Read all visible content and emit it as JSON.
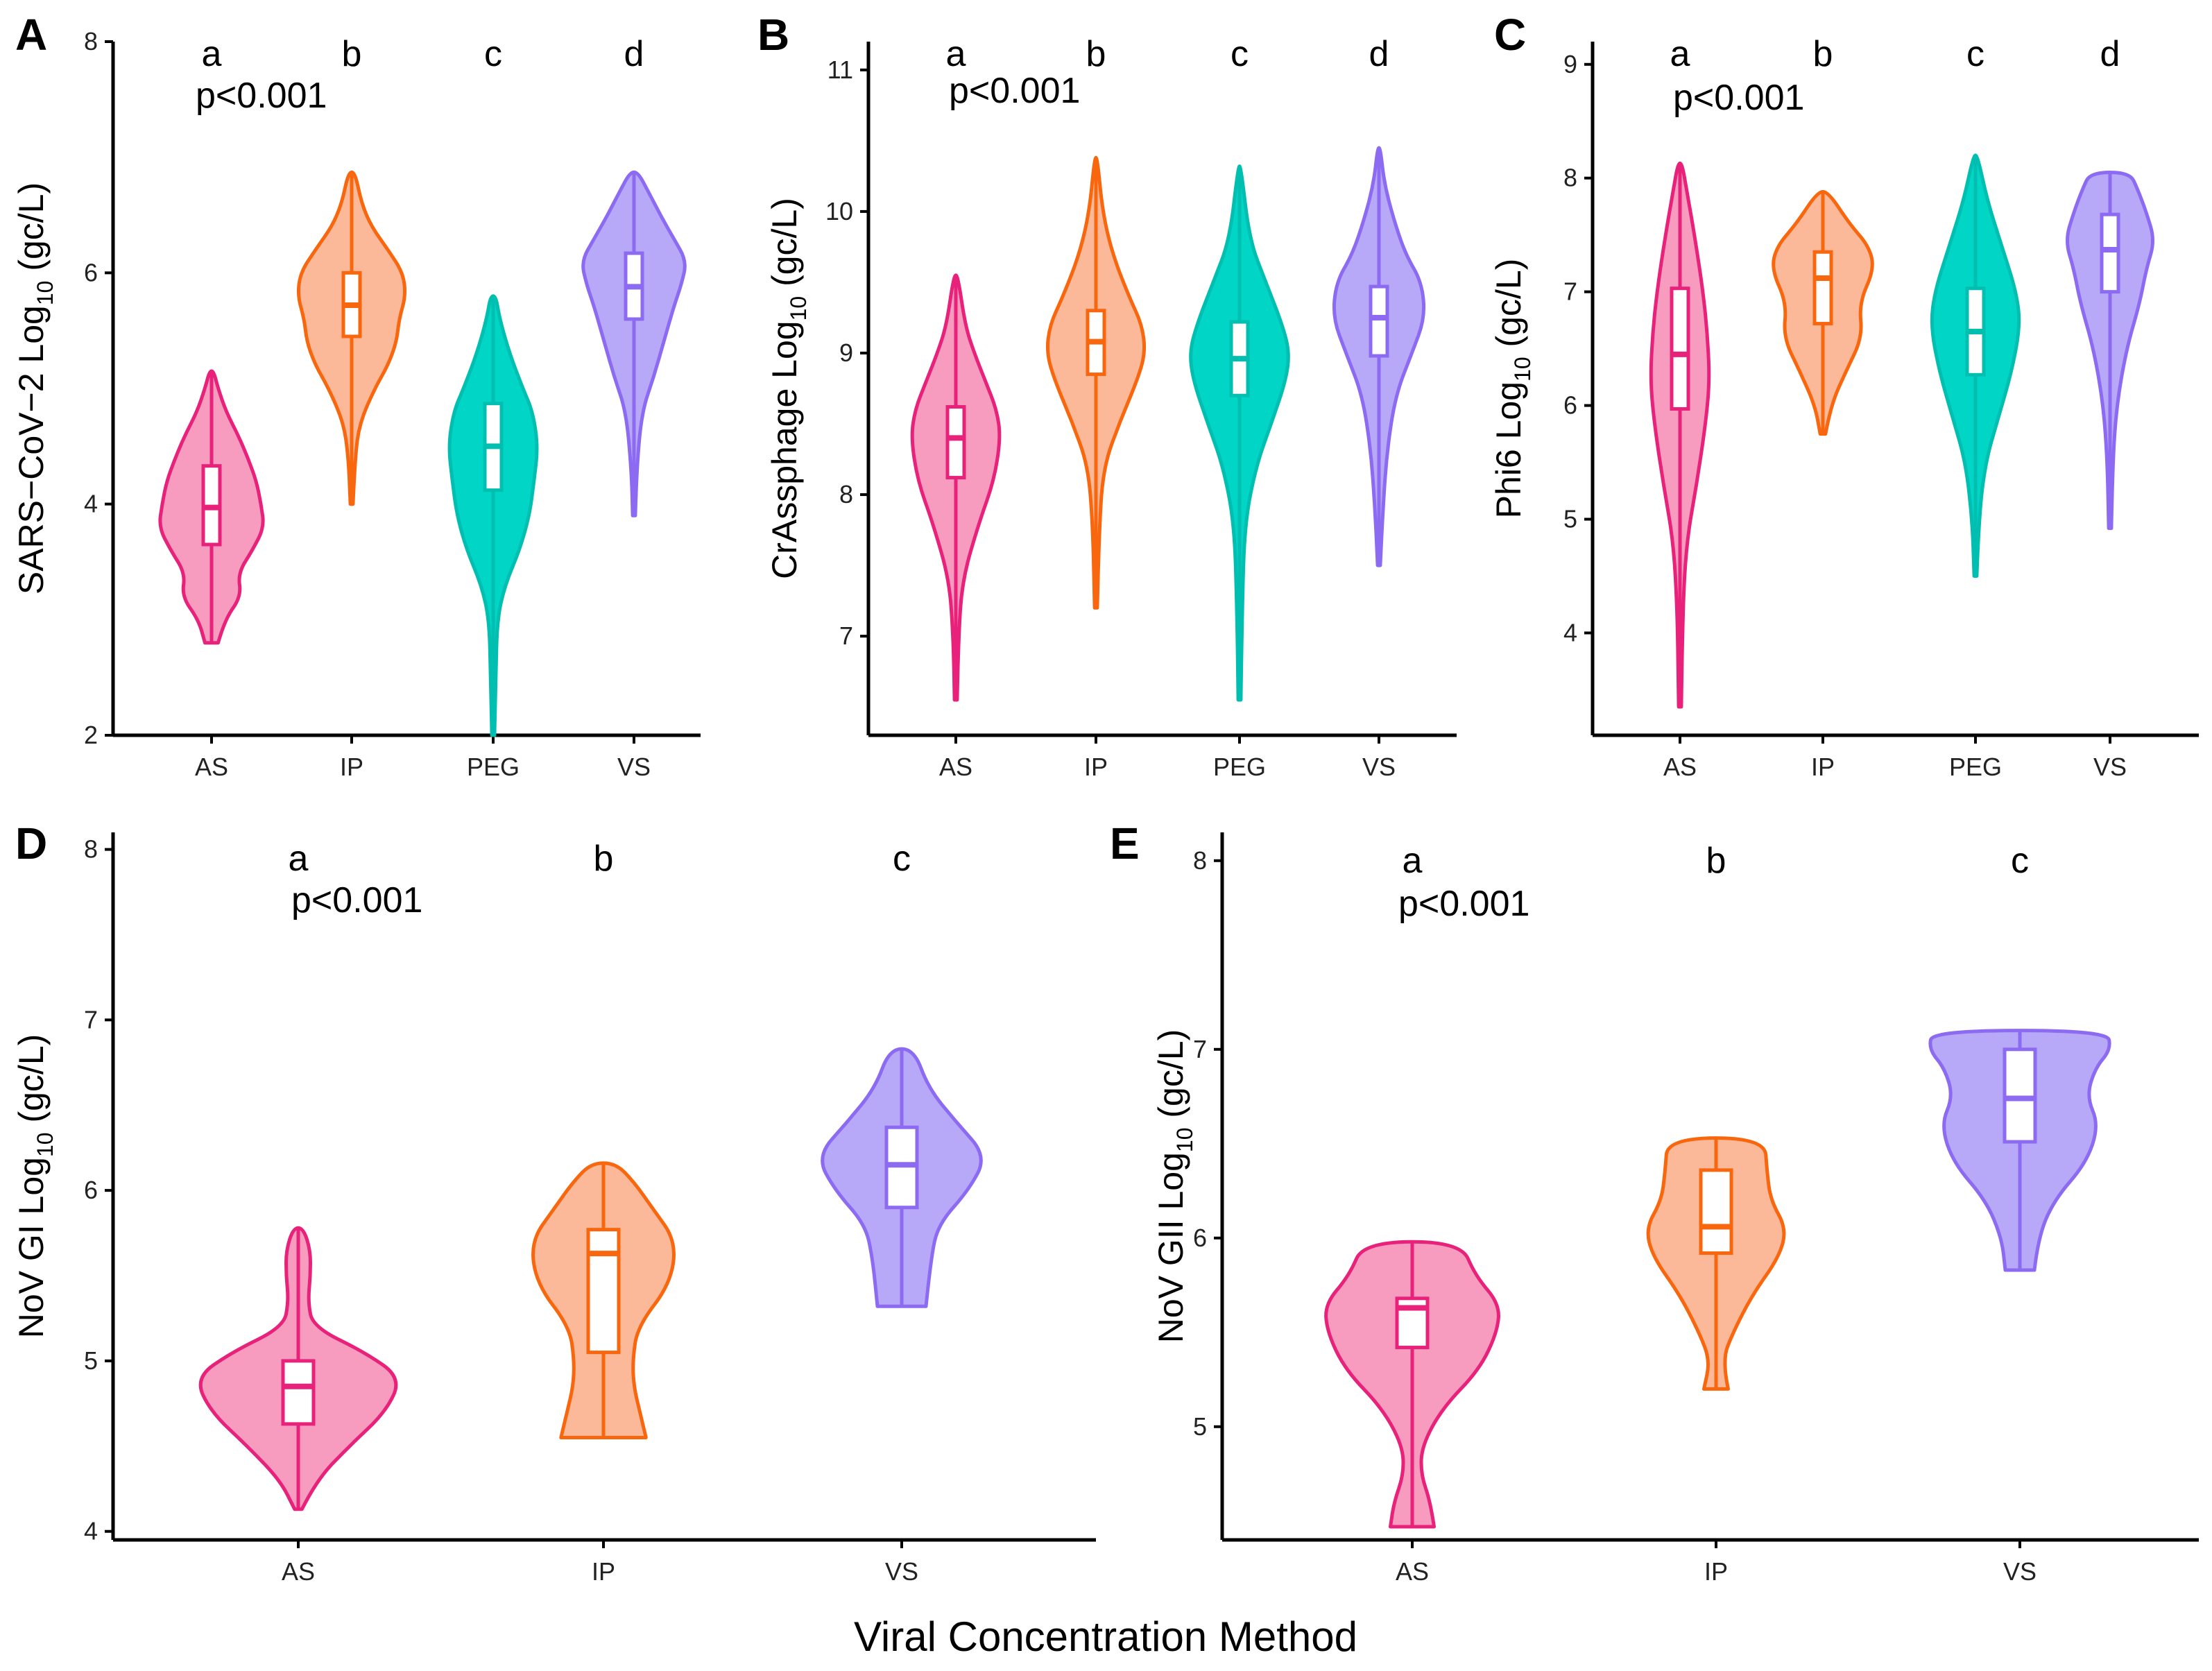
{
  "figure": {
    "x_title": "Viral Concentration Method"
  },
  "colors": {
    "AS": {
      "line": "#E8217A",
      "fill": "#F79CBF"
    },
    "IP": {
      "line": "#F8660D",
      "fill": "#FBB99A"
    },
    "PEG": {
      "line": "#00BFB0",
      "fill": "#00D5C6"
    },
    "VS": {
      "line": "#8C6BF2",
      "fill": "#B7A8F8"
    }
  },
  "chart_data": [
    {
      "id": "A",
      "type": "violin",
      "tag": "A",
      "ylabel_main": "SARS−CoV−2 Log",
      "ylabel_sub": "10",
      "ylabel_unit": " (gc/L)",
      "ylim": [
        2,
        8
      ],
      "yticks": [
        2,
        4,
        6,
        8
      ],
      "pvalue": "p<0.001",
      "categories": [
        "AS",
        "IP",
        "PEG",
        "VS"
      ],
      "letters": [
        "a",
        "b",
        "c",
        "d"
      ],
      "violins": [
        {
          "cat": "AS",
          "min": 2.8,
          "max": 5.15,
          "q1": 3.65,
          "median": 3.97,
          "q3": 4.33,
          "profile": [
            [
              2.8,
              0.1
            ],
            [
              3.0,
              0.2
            ],
            [
              3.2,
              0.45
            ],
            [
              3.4,
              0.4
            ],
            [
              3.6,
              0.62
            ],
            [
              3.8,
              0.8
            ],
            [
              4.0,
              0.75
            ],
            [
              4.2,
              0.68
            ],
            [
              4.4,
              0.55
            ],
            [
              4.6,
              0.4
            ],
            [
              4.8,
              0.22
            ],
            [
              5.0,
              0.1
            ],
            [
              5.15,
              0.03
            ]
          ]
        },
        {
          "cat": "IP",
          "min": 4.0,
          "max": 6.87,
          "q1": 5.45,
          "median": 5.72,
          "q3": 6.0,
          "profile": [
            [
              4.0,
              0.02
            ],
            [
              4.4,
              0.05
            ],
            [
              4.7,
              0.12
            ],
            [
              5.0,
              0.35
            ],
            [
              5.2,
              0.55
            ],
            [
              5.4,
              0.68
            ],
            [
              5.6,
              0.72
            ],
            [
              5.8,
              0.82
            ],
            [
              6.0,
              0.78
            ],
            [
              6.2,
              0.55
            ],
            [
              6.4,
              0.3
            ],
            [
              6.6,
              0.15
            ],
            [
              6.87,
              0.05
            ]
          ]
        },
        {
          "cat": "PEG",
          "min": 2.0,
          "max": 5.8,
          "q1": 4.12,
          "median": 4.5,
          "q3": 4.87,
          "profile": [
            [
              2.0,
              0.02
            ],
            [
              2.5,
              0.04
            ],
            [
              3.0,
              0.06
            ],
            [
              3.3,
              0.18
            ],
            [
              3.6,
              0.4
            ],
            [
              3.9,
              0.55
            ],
            [
              4.2,
              0.62
            ],
            [
              4.5,
              0.68
            ],
            [
              4.8,
              0.6
            ],
            [
              5.0,
              0.45
            ],
            [
              5.3,
              0.25
            ],
            [
              5.6,
              0.1
            ],
            [
              5.8,
              0.04
            ]
          ]
        },
        {
          "cat": "VS",
          "min": 3.9,
          "max": 6.87,
          "q1": 5.6,
          "median": 5.88,
          "q3": 6.17,
          "profile": [
            [
              3.9,
              0.02
            ],
            [
              4.3,
              0.04
            ],
            [
              4.8,
              0.12
            ],
            [
              5.1,
              0.3
            ],
            [
              5.4,
              0.45
            ],
            [
              5.7,
              0.6
            ],
            [
              5.9,
              0.72
            ],
            [
              6.1,
              0.8
            ],
            [
              6.3,
              0.6
            ],
            [
              6.5,
              0.4
            ],
            [
              6.7,
              0.22
            ],
            [
              6.87,
              0.06
            ]
          ]
        }
      ]
    },
    {
      "id": "B",
      "type": "violin",
      "tag": "B",
      "ylabel_main": "CrAssphage Log",
      "ylabel_sub": "10",
      "ylabel_unit": " (gc/L)",
      "ylim": [
        6.3,
        11.2
      ],
      "yticks": [
        7,
        8,
        9,
        10,
        11
      ],
      "pvalue": "p<0.001",
      "categories": [
        "AS",
        "IP",
        "PEG",
        "VS"
      ],
      "letters": [
        "a",
        "b",
        "c",
        "d"
      ],
      "violins": [
        {
          "cat": "AS",
          "min": 6.55,
          "max": 9.55,
          "q1": 8.12,
          "median": 8.4,
          "q3": 8.62,
          "profile": [
            [
              6.55,
              0.02
            ],
            [
              7.0,
              0.04
            ],
            [
              7.4,
              0.1
            ],
            [
              7.8,
              0.35
            ],
            [
              8.1,
              0.58
            ],
            [
              8.4,
              0.68
            ],
            [
              8.6,
              0.62
            ],
            [
              8.8,
              0.45
            ],
            [
              9.0,
              0.28
            ],
            [
              9.2,
              0.14
            ],
            [
              9.55,
              0.03
            ]
          ]
        },
        {
          "cat": "IP",
          "min": 7.2,
          "max": 10.38,
          "q1": 8.85,
          "median": 9.08,
          "q3": 9.3,
          "profile": [
            [
              7.2,
              0.02
            ],
            [
              7.8,
              0.05
            ],
            [
              8.2,
              0.12
            ],
            [
              8.5,
              0.35
            ],
            [
              8.8,
              0.62
            ],
            [
              9.0,
              0.75
            ],
            [
              9.2,
              0.7
            ],
            [
              9.4,
              0.5
            ],
            [
              9.7,
              0.25
            ],
            [
              10.0,
              0.1
            ],
            [
              10.38,
              0.02
            ]
          ]
        },
        {
          "cat": "PEG",
          "min": 6.55,
          "max": 10.32,
          "q1": 8.7,
          "median": 8.96,
          "q3": 9.22,
          "profile": [
            [
              6.55,
              0.02
            ],
            [
              7.2,
              0.04
            ],
            [
              7.8,
              0.08
            ],
            [
              8.2,
              0.25
            ],
            [
              8.5,
              0.48
            ],
            [
              8.8,
              0.7
            ],
            [
              9.0,
              0.76
            ],
            [
              9.2,
              0.65
            ],
            [
              9.5,
              0.4
            ],
            [
              9.8,
              0.15
            ],
            [
              10.32,
              0.02
            ]
          ]
        },
        {
          "cat": "VS",
          "min": 7.5,
          "max": 10.45,
          "q1": 8.98,
          "median": 9.25,
          "q3": 9.47,
          "profile": [
            [
              7.5,
              0.02
            ],
            [
              7.9,
              0.06
            ],
            [
              8.3,
              0.12
            ],
            [
              8.7,
              0.25
            ],
            [
              9.0,
              0.5
            ],
            [
              9.25,
              0.7
            ],
            [
              9.5,
              0.65
            ],
            [
              9.7,
              0.4
            ],
            [
              9.95,
              0.22
            ],
            [
              10.2,
              0.08
            ],
            [
              10.45,
              0.02
            ]
          ]
        }
      ]
    },
    {
      "id": "C",
      "type": "violin",
      "tag": "C",
      "ylabel_main": "Phi6 Log",
      "ylabel_sub": "10",
      "ylabel_unit": " (gc/L)",
      "ylim": [
        3.1,
        9.2
      ],
      "yticks": [
        4,
        5,
        6,
        7,
        8,
        9
      ],
      "pvalue": "p<0.001",
      "categories": [
        "AS",
        "IP",
        "PEG",
        "VS"
      ],
      "letters": [
        "a",
        "b",
        "c",
        "d"
      ],
      "violins": [
        {
          "cat": "AS",
          "min": 3.35,
          "max": 8.13,
          "q1": 5.97,
          "median": 6.45,
          "q3": 7.03,
          "profile": [
            [
              3.35,
              0.02
            ],
            [
              4.2,
              0.04
            ],
            [
              4.8,
              0.1
            ],
            [
              5.3,
              0.25
            ],
            [
              5.8,
              0.38
            ],
            [
              6.2,
              0.45
            ],
            [
              6.6,
              0.42
            ],
            [
              7.0,
              0.35
            ],
            [
              7.5,
              0.22
            ],
            [
              7.9,
              0.1
            ],
            [
              8.13,
              0.03
            ]
          ]
        },
        {
          "cat": "IP",
          "min": 5.75,
          "max": 7.88,
          "q1": 6.72,
          "median": 7.12,
          "q3": 7.35,
          "profile": [
            [
              5.75,
              0.04
            ],
            [
              6.0,
              0.12
            ],
            [
              6.3,
              0.35
            ],
            [
              6.6,
              0.6
            ],
            [
              6.9,
              0.55
            ],
            [
              7.2,
              0.78
            ],
            [
              7.4,
              0.7
            ],
            [
              7.6,
              0.4
            ],
            [
              7.88,
              0.08
            ]
          ]
        },
        {
          "cat": "PEG",
          "min": 4.5,
          "max": 8.2,
          "q1": 6.27,
          "median": 6.65,
          "q3": 7.03,
          "profile": [
            [
              4.5,
              0.02
            ],
            [
              5.0,
              0.05
            ],
            [
              5.5,
              0.15
            ],
            [
              5.9,
              0.35
            ],
            [
              6.3,
              0.55
            ],
            [
              6.7,
              0.68
            ],
            [
              7.0,
              0.62
            ],
            [
              7.4,
              0.4
            ],
            [
              7.8,
              0.18
            ],
            [
              8.2,
              0.03
            ]
          ]
        },
        {
          "cat": "VS",
          "min": 4.92,
          "max": 8.05,
          "q1": 7.0,
          "median": 7.37,
          "q3": 7.68,
          "profile": [
            [
              4.92,
              0.02
            ],
            [
              5.5,
              0.04
            ],
            [
              6.0,
              0.1
            ],
            [
              6.5,
              0.25
            ],
            [
              6.9,
              0.45
            ],
            [
              7.2,
              0.55
            ],
            [
              7.45,
              0.68
            ],
            [
              7.7,
              0.55
            ],
            [
              7.9,
              0.42
            ],
            [
              8.05,
              0.3
            ]
          ]
        }
      ]
    },
    {
      "id": "D",
      "type": "violin",
      "tag": "D",
      "ylabel_main": "NoV GI Log",
      "ylabel_sub": "10",
      "ylabel_unit": " (gc/L)",
      "ylim": [
        3.95,
        8.1
      ],
      "yticks": [
        4,
        5,
        6,
        7,
        8
      ],
      "pvalue": "p<0.001",
      "categories": [
        "AS",
        "IP",
        "VS"
      ],
      "letters": [
        "a",
        "b",
        "c"
      ],
      "violins": [
        {
          "cat": "AS",
          "min": 4.13,
          "max": 5.78,
          "q1": 4.63,
          "median": 4.85,
          "q3": 5.0,
          "profile": [
            [
              4.13,
              0.03
            ],
            [
              4.3,
              0.15
            ],
            [
              4.5,
              0.42
            ],
            [
              4.7,
              0.72
            ],
            [
              4.9,
              0.85
            ],
            [
              5.05,
              0.55
            ],
            [
              5.2,
              0.12
            ],
            [
              5.35,
              0.08
            ],
            [
              5.5,
              0.1
            ],
            [
              5.65,
              0.1
            ],
            [
              5.78,
              0.04
            ]
          ]
        },
        {
          "cat": "IP",
          "min": 4.55,
          "max": 6.16,
          "q1": 5.05,
          "median": 5.63,
          "q3": 5.77,
          "profile": [
            [
              4.55,
              0.35
            ],
            [
              4.7,
              0.3
            ],
            [
              4.85,
              0.25
            ],
            [
              5.0,
              0.24
            ],
            [
              5.2,
              0.28
            ],
            [
              5.45,
              0.55
            ],
            [
              5.7,
              0.6
            ],
            [
              5.9,
              0.4
            ],
            [
              6.05,
              0.25
            ],
            [
              6.16,
              0.1
            ]
          ]
        },
        {
          "cat": "VS",
          "min": 5.32,
          "max": 6.83,
          "q1": 5.9,
          "median": 6.15,
          "q3": 6.37,
          "profile": [
            [
              5.32,
              0.2
            ],
            [
              5.6,
              0.24
            ],
            [
              5.8,
              0.3
            ],
            [
              6.0,
              0.55
            ],
            [
              6.2,
              0.7
            ],
            [
              6.4,
              0.45
            ],
            [
              6.6,
              0.22
            ],
            [
              6.83,
              0.1
            ]
          ]
        }
      ]
    },
    {
      "id": "E",
      "type": "violin",
      "tag": "E",
      "ylabel_main": "NoV GII Log",
      "ylabel_sub": "10",
      "ylabel_unit": " (gc/L)",
      "ylim": [
        4.4,
        8.15
      ],
      "yticks": [
        5,
        6,
        7,
        8
      ],
      "pvalue": "p<0.001",
      "categories": [
        "AS",
        "IP",
        "VS"
      ],
      "letters": [
        "a",
        "b",
        "c"
      ],
      "violins": [
        {
          "cat": "AS",
          "min": 4.47,
          "max": 5.98,
          "q1": 5.42,
          "median": 5.63,
          "q3": 5.68,
          "profile": [
            [
              4.47,
              0.18
            ],
            [
              4.6,
              0.15
            ],
            [
              4.75,
              0.07
            ],
            [
              4.9,
              0.08
            ],
            [
              5.1,
              0.25
            ],
            [
              5.3,
              0.55
            ],
            [
              5.5,
              0.7
            ],
            [
              5.65,
              0.72
            ],
            [
              5.8,
              0.52
            ],
            [
              5.98,
              0.4
            ]
          ]
        },
        {
          "cat": "IP",
          "min": 5.2,
          "max": 6.53,
          "q1": 5.92,
          "median": 6.06,
          "q3": 6.36,
          "profile": [
            [
              5.2,
              0.1
            ],
            [
              5.35,
              0.05
            ],
            [
              5.5,
              0.14
            ],
            [
              5.7,
              0.3
            ],
            [
              5.9,
              0.52
            ],
            [
              6.05,
              0.58
            ],
            [
              6.2,
              0.45
            ],
            [
              6.35,
              0.42
            ],
            [
              6.53,
              0.4
            ]
          ]
        },
        {
          "cat": "VS",
          "min": 5.83,
          "max": 7.1,
          "q1": 6.51,
          "median": 6.74,
          "q3": 7.0,
          "profile": [
            [
              5.83,
              0.12
            ],
            [
              6.0,
              0.15
            ],
            [
              6.2,
              0.28
            ],
            [
              6.4,
              0.55
            ],
            [
              6.6,
              0.65
            ],
            [
              6.75,
              0.55
            ],
            [
              6.9,
              0.62
            ],
            [
              7.0,
              0.75
            ],
            [
              7.1,
              0.72
            ]
          ]
        }
      ]
    }
  ]
}
